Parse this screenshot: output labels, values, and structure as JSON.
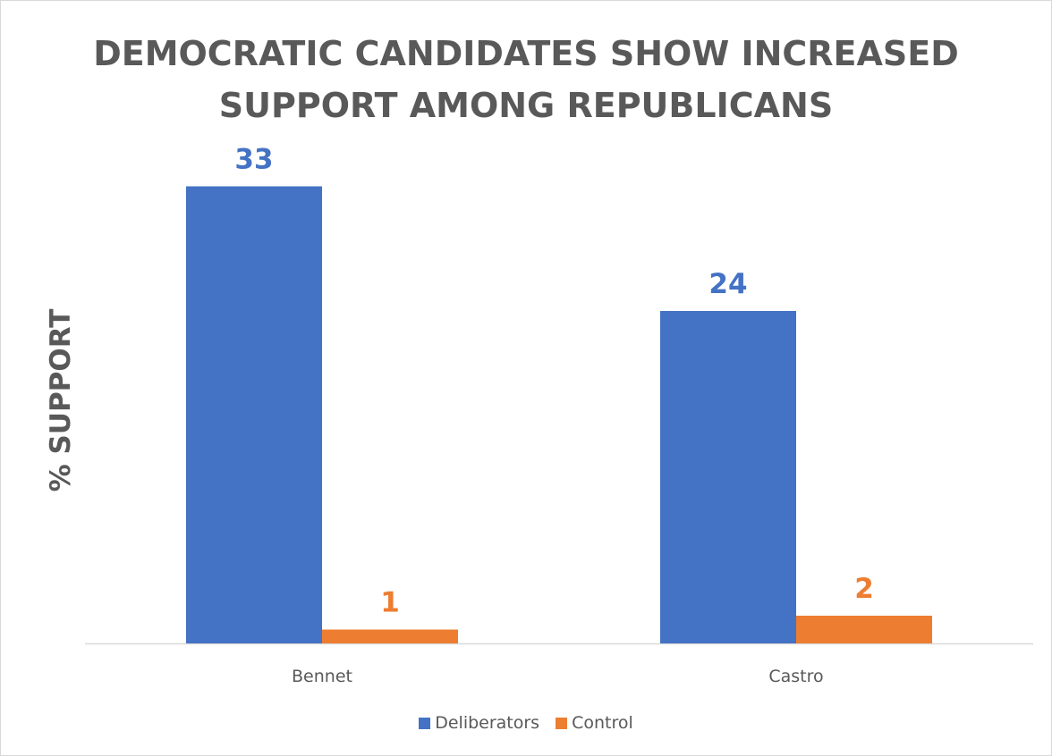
{
  "chart_data": {
    "type": "bar",
    "title_lines": [
      "DEMOCRATIC CANDIDATES SHOW INCREASED",
      "SUPPORT AMONG REPUBLICANS"
    ],
    "xlabel": "",
    "ylabel": "% SUPPORT",
    "categories": [
      "Bennet",
      "Castro"
    ],
    "series": [
      {
        "name": "Deliberators",
        "values": [
          33,
          24
        ],
        "color": "#4472C4"
      },
      {
        "name": "Control",
        "values": [
          1,
          2
        ],
        "color": "#ED7D31"
      }
    ],
    "ylim": [
      0,
      35
    ],
    "grid": false,
    "legend": "bottom"
  }
}
